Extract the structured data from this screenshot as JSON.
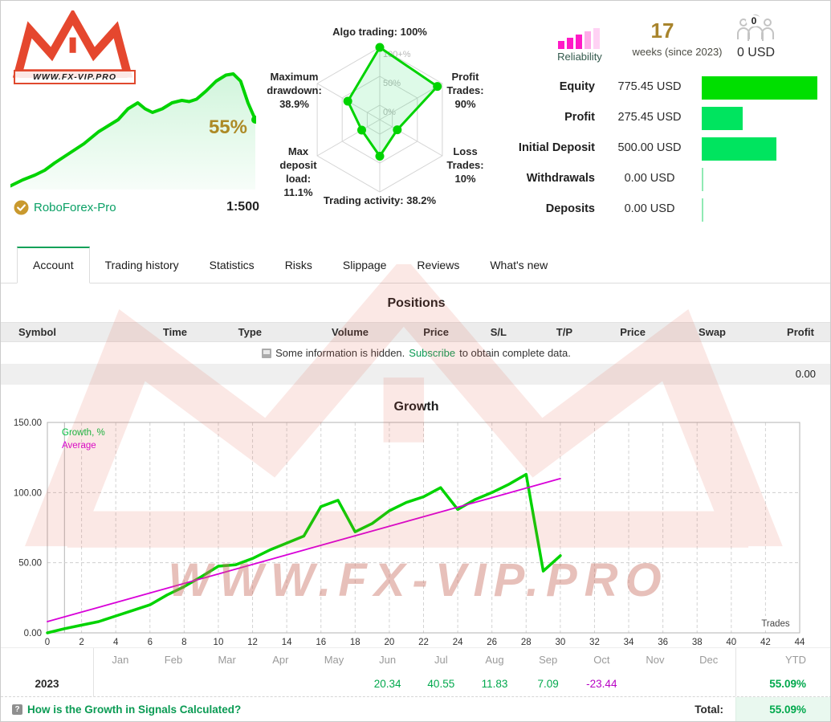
{
  "colors": {
    "accent_green": "#00d300",
    "bar_green_bright": "#00df00",
    "bar_green": "#00e45f",
    "bar_zero": "#90eab4",
    "magenta": "#d800d8",
    "link_green": "#0b9b54",
    "positive_green": "#00a84c",
    "negative_purple": "#b703c4",
    "reliability_pink": "#ff1ac6",
    "gold": "#a8842c",
    "watermark_red": "#e25740"
  },
  "watermark": {
    "text": "WWW.FX-VIP.PRO"
  },
  "header": {
    "logo": {
      "site": "WWW.FX-VIP.PRO"
    },
    "sparkline": {
      "growth_label": "55%",
      "points": [
        [
          0,
          97
        ],
        [
          5,
          92
        ],
        [
          10,
          88
        ],
        [
          14,
          84
        ],
        [
          18,
          78
        ],
        [
          24,
          70
        ],
        [
          30,
          62
        ],
        [
          36,
          52
        ],
        [
          40,
          47
        ],
        [
          44,
          42
        ],
        [
          48,
          33
        ],
        [
          52,
          28
        ],
        [
          55,
          33
        ],
        [
          58,
          36
        ],
        [
          62,
          33
        ],
        [
          66,
          28
        ],
        [
          70,
          26
        ],
        [
          73,
          27
        ],
        [
          76,
          25
        ],
        [
          80,
          18
        ],
        [
          84,
          10
        ],
        [
          88,
          5
        ],
        [
          91,
          4
        ],
        [
          94,
          10
        ],
        [
          97,
          28
        ],
        [
          100,
          42
        ]
      ]
    },
    "broker": {
      "name": "RoboForex-Pro",
      "leverage": "1:500"
    },
    "radar": {
      "rings": [
        "100+%",
        "50%",
        "0%"
      ],
      "axes": [
        {
          "label": "Algo trading: 100%",
          "value": 100
        },
        {
          "label": "Profit\nTrades:\n90%",
          "value": 90
        },
        {
          "label": "Loss\nTrades:\n10%",
          "value": 10
        },
        {
          "label": "Trading activity: 38.2%",
          "value": 38.2
        },
        {
          "label": "Max\ndeposit\nload:\n11.1%",
          "value": 11.1
        },
        {
          "label": "Maximum\ndrawdown:\n38.9%",
          "value": 38.9
        }
      ]
    },
    "reliability": {
      "label": "Reliability",
      "level": 3,
      "bars_total": 5
    },
    "age": {
      "value": "17",
      "caption": "weeks (since 2023)"
    },
    "subscribers": {
      "count": "0",
      "amount": "0 USD"
    },
    "stats": {
      "rows": [
        {
          "label": "Equity",
          "value": "775.45 USD",
          "amount": 775.45
        },
        {
          "label": "Profit",
          "value": "275.45 USD",
          "amount": 275.45
        },
        {
          "label": "Initial Deposit",
          "value": "500.00 USD",
          "amount": 500.0
        },
        {
          "label": "Withdrawals",
          "value": "0.00 USD",
          "amount": 0
        },
        {
          "label": "Deposits",
          "value": "0.00 USD",
          "amount": 0
        }
      ]
    }
  },
  "tabs": {
    "active": "Account",
    "items": [
      "Account",
      "Trading history",
      "Statistics",
      "Risks",
      "Slippage",
      "Reviews",
      "What's new"
    ]
  },
  "positions": {
    "title": "Positions",
    "columns": [
      "Symbol",
      "Time",
      "Type",
      "Volume",
      "Price",
      "S/L",
      "T/P",
      "Price",
      "Swap",
      "Profit"
    ],
    "message": {
      "prefix": "Some information is hidden.",
      "link": "Subscribe",
      "suffix": "to obtain complete data."
    },
    "total_value": "0.00"
  },
  "chart_data": {
    "type": "line",
    "title": "Growth",
    "xlabel": "Trades",
    "ylabel": "Growth, %",
    "ylim": [
      0,
      150
    ],
    "y_ticks": [
      "0.00",
      "50.00",
      "100.00",
      "150.00"
    ],
    "y_tick_values": [
      0,
      50,
      100,
      150
    ],
    "y_grid": [
      50,
      100
    ],
    "x_ticks": [
      0,
      2,
      4,
      6,
      8,
      10,
      12,
      14,
      16,
      18,
      20,
      22,
      24,
      26,
      28,
      30,
      32,
      34,
      36,
      38,
      40,
      42,
      44
    ],
    "marker_x": 1,
    "grid": "dashed",
    "legend_position": "top-left",
    "legend": [
      {
        "name": "Growth, %",
        "color": "#00bf3f"
      },
      {
        "name": "Average",
        "color": "#d800d8"
      }
    ],
    "series": [
      {
        "name": "Growth, %",
        "color": "#00d300",
        "width": 3.5,
        "x": [
          0,
          1,
          2,
          3,
          4,
          5,
          6,
          7,
          8,
          9,
          10,
          11,
          12,
          13,
          14,
          15,
          16,
          17,
          18,
          19,
          20,
          21,
          22,
          23,
          24,
          25,
          26,
          27,
          28,
          29,
          30
        ],
        "values": [
          0,
          3,
          5.5,
          8,
          12,
          16,
          20,
          27,
          33,
          40,
          47.5,
          48.5,
          53,
          59,
          64,
          69,
          90,
          94.5,
          72,
          78,
          87,
          93,
          97,
          103.5,
          88,
          95,
          100,
          106,
          113,
          44,
          55
        ]
      },
      {
        "name": "Average",
        "color": "#d800d8",
        "width": 1.8,
        "x": [
          0,
          30
        ],
        "values": [
          8,
          110
        ]
      }
    ]
  },
  "monthly": {
    "months": [
      "Jan",
      "Feb",
      "Mar",
      "Apr",
      "May",
      "Jun",
      "Jul",
      "Aug",
      "Sep",
      "Oct",
      "Nov",
      "Dec"
    ],
    "ytd_label": "YTD",
    "rows": [
      {
        "year": "2023",
        "values": [
          "",
          "",
          "",
          "",
          "",
          "20.34",
          "40.55",
          "11.83",
          "7.09",
          "-23.44",
          "",
          ""
        ],
        "ytd": "55.09%"
      }
    ]
  },
  "footer": {
    "help_link": "How is the Growth in Signals Calculated?",
    "total_label": "Total:",
    "total_value": "55.09%"
  }
}
